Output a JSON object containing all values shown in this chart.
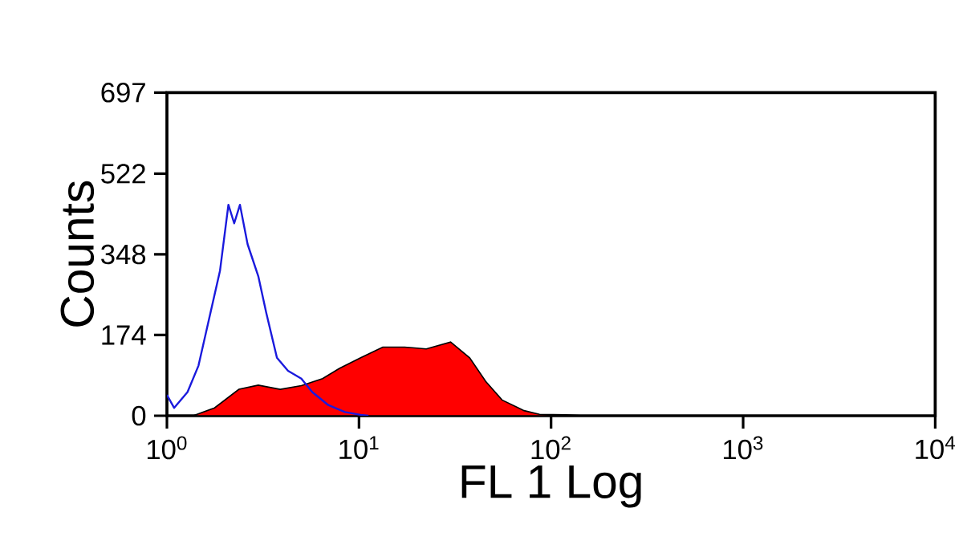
{
  "chart_data": {
    "type": "line",
    "xlabel": "FL 1 Log",
    "ylabel": "Counts",
    "log": "x",
    "xlim": [
      1,
      10000
    ],
    "ylim": [
      0,
      697
    ],
    "xticks": [
      {
        "value": 1,
        "label": "10$^{0}$"
      },
      {
        "value": 10,
        "label": "10$^{1}$"
      },
      {
        "value": 100,
        "label": "10$^{2}$"
      },
      {
        "value": 1000,
        "label": "10$^{3}$"
      },
      {
        "value": 10000,
        "label": "10$^{4}$"
      }
    ],
    "yticks": [
      0,
      174,
      348,
      522,
      697
    ],
    "grid": false,
    "series": [
      {
        "type": "area",
        "color": "#ff0000",
        "x": [
          1.37,
          1.77,
          2.37,
          2.99,
          3.89,
          5.01,
          6.46,
          7.91,
          10.2,
          13.3,
          17.3,
          22.4,
          30.0,
          37.7,
          45.7,
          55.6,
          72.4,
          87.1,
          120,
          148
        ],
        "values": [
          0,
          17,
          57,
          66,
          57,
          65,
          80,
          102,
          125,
          148,
          148,
          144,
          159,
          125,
          74,
          34,
          11,
          3,
          2,
          0
        ]
      },
      {
        "color": "#1a1add",
        "x": [
          1.0,
          1.09,
          1.28,
          1.46,
          1.66,
          1.89,
          2.09,
          2.24,
          2.4,
          2.63,
          2.99,
          3.29,
          3.74,
          4.27,
          5.01,
          5.71,
          6.92,
          8.45,
          10.2,
          11.2
        ],
        "values": [
          45,
          17,
          51,
          108,
          210,
          313,
          455,
          415,
          455,
          370,
          301,
          222,
          125,
          97,
          80,
          51,
          23,
          8,
          2,
          0
        ]
      }
    ]
  }
}
